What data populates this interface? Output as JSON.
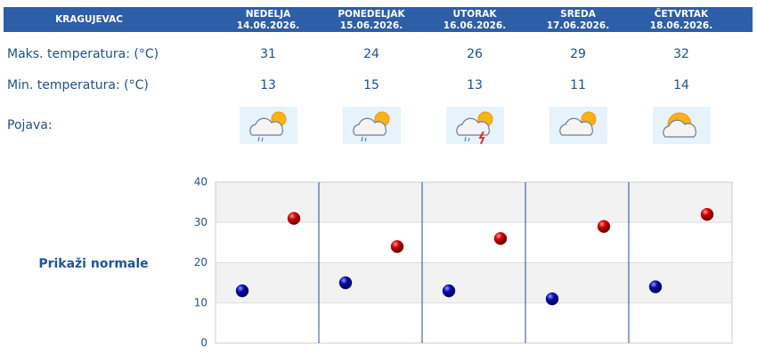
{
  "header": {
    "city": "KRAGUJEVAC"
  },
  "days": [
    {
      "name": "NEDELJA",
      "date": "14.06.2026."
    },
    {
      "name": "PONEDELJAK",
      "date": "15.06.2026."
    },
    {
      "name": "UTORAK",
      "date": "16.06.2026."
    },
    {
      "name": "SREDA",
      "date": "17.06.2026."
    },
    {
      "name": "ČETVRTAK",
      "date": "18.06.2026."
    }
  ],
  "rows": {
    "max": {
      "label": "Maks. temperatura: (°C)",
      "values": [
        31,
        24,
        26,
        29,
        32
      ]
    },
    "min": {
      "label": "Min. temperatura: (°C)",
      "values": [
        13,
        15,
        13,
        11,
        14
      ]
    },
    "phenomenon": {
      "label": "Pojava:"
    }
  },
  "chart": {
    "link": "Prikaži normale",
    "ylim": [
      0,
      40
    ],
    "yticks": [
      0,
      10,
      20,
      30,
      40
    ],
    "max_color": "#d40000",
    "min_color": "#0a0ab4"
  }
}
